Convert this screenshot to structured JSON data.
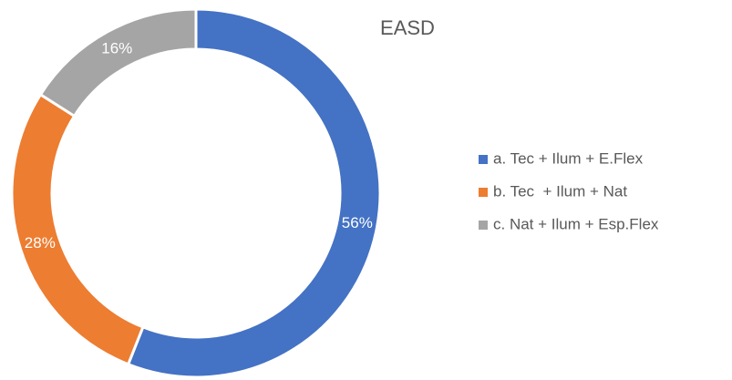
{
  "chart_data": {
    "type": "donut",
    "title": "EASD",
    "categories": [
      "a. Tec + Ilum + E.Flex",
      "b. Tec  + Ilum + Nat",
      "c. Nat + Ilum + Esp.Flex"
    ],
    "values": [
      56,
      28,
      16
    ],
    "value_labels": [
      "56%",
      "28%",
      "16%"
    ],
    "colors": [
      "#4472c4",
      "#ed7d31",
      "#a5a5a5"
    ],
    "legend": "right"
  }
}
